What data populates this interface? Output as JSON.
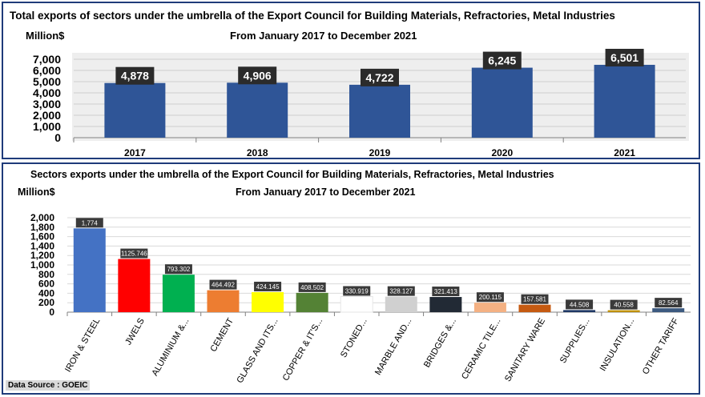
{
  "chart_data": [
    {
      "type": "bar",
      "title": "Total exports of sectors under the umbrella of the Export Council for Building Materials, Refractories, Metal Industries",
      "unit_label": "Million$",
      "subtitle": "From January 2017 to December 2021",
      "categories": [
        "2017",
        "2018",
        "2019",
        "2020",
        "2021"
      ],
      "values": [
        4878,
        4906,
        4722,
        6245,
        6501
      ],
      "data_labels": [
        "4,878",
        "4,906",
        "4,722",
        "6,245",
        "6,501"
      ],
      "yticks": [
        "0",
        "1,000",
        "2,000",
        "3,000",
        "4,000",
        "5,000",
        "6,000",
        "7,000"
      ],
      "ylim": [
        0,
        7000
      ],
      "grid": true,
      "bar_color": "#2f5597"
    },
    {
      "type": "bar",
      "title": "Sectors exports under the umbrella of the Export Council for Building Materials, Refractories, Metal Industries",
      "unit_label": "Million$",
      "subtitle": "From January 2017 to December 2021",
      "categories": [
        "IRON & STEEL",
        "JWELS",
        "ALUMINIUM &...",
        "CEMENT",
        "GLASS AND ITS...",
        "COPPER & IT'S...",
        "STONED...",
        "MARBLE AND...",
        "BRIDGES &...",
        "CERAMIC TILE...",
        "SANITARY WARE",
        "SUPPLIES...",
        "INSULATION...",
        "OTHER TARIFF"
      ],
      "values": [
        1774,
        1125.746,
        793.302,
        464.492,
        424.145,
        408.502,
        330.919,
        328.127,
        321.413,
        200.115,
        157.581,
        44.508,
        40.558,
        82.564
      ],
      "data_labels": [
        "1,774",
        "1125.746",
        "793.302",
        "464.492",
        "424.145",
        "408.502",
        "330.919",
        "328.127",
        "321.413",
        "200.115",
        "157.581",
        "44.508",
        "40.558",
        "82.564"
      ],
      "colors": [
        "#4472c4",
        "#ff0000",
        "#00b050",
        "#ed7d31",
        "#ffff00",
        "#548235",
        "#ffffff",
        "#d0d0d0",
        "#222a35",
        "#f4b183",
        "#c55a11",
        "#1f3864",
        "#bf9000",
        "#3d5a80"
      ],
      "yticks": [
        "0",
        "200",
        "400",
        "600",
        "800",
        "1,000",
        "1,200",
        "1,400",
        "1,600",
        "1,800",
        "2,000"
      ],
      "ylim": [
        0,
        2000
      ],
      "grid": true
    }
  ],
  "source_label": "Data Source : GOEIC"
}
